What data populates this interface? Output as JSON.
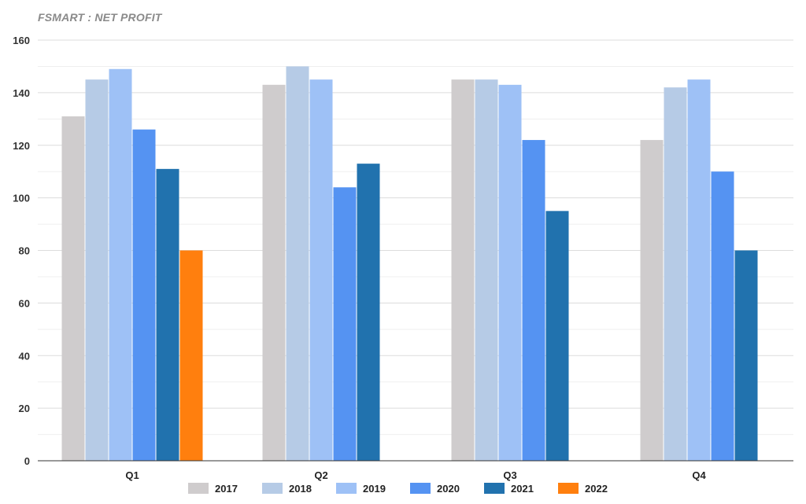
{
  "chart_data": {
    "type": "bar",
    "title": "FSMART : NET PROFIT",
    "categories": [
      "Q1",
      "Q2",
      "Q3",
      "Q4"
    ],
    "series": [
      {
        "name": "2017",
        "color": "#cfcccd",
        "values": [
          131,
          143,
          145,
          122
        ]
      },
      {
        "name": "2018",
        "color": "#b6cbe6",
        "values": [
          145,
          150,
          145,
          142
        ]
      },
      {
        "name": "2019",
        "color": "#9ec1f6",
        "values": [
          149,
          145,
          143,
          145
        ]
      },
      {
        "name": "2020",
        "color": "#5593f2",
        "values": [
          126,
          104,
          122,
          110
        ]
      },
      {
        "name": "2021",
        "color": "#2172ae",
        "values": [
          111,
          113,
          95,
          80
        ]
      },
      {
        "name": "2022",
        "color": "#ff7f0e",
        "values": [
          80,
          null,
          null,
          null
        ]
      }
    ],
    "ylim": [
      0,
      160
    ],
    "yticks": [
      0,
      20,
      40,
      60,
      80,
      100,
      120,
      140,
      160
    ],
    "grid": true,
    "legend_position": "bottom",
    "xlabel": "",
    "ylabel": ""
  }
}
